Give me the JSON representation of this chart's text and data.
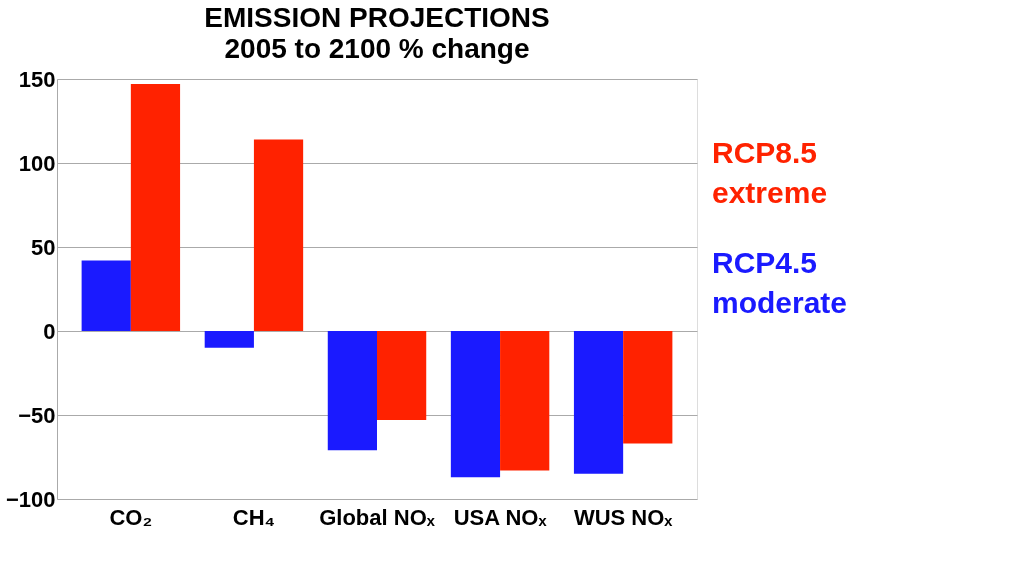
{
  "chart_data": {
    "type": "bar",
    "title": "EMISSION PROJECTIONS",
    "subtitle": "2005 to 2100 % change",
    "categories": [
      "CO₂",
      "CH₄",
      "Global NOₓ",
      "USA NOₓ",
      "WUS NOₓ"
    ],
    "series": [
      {
        "name": "RCP4.5 moderate",
        "color": "#1a1aff",
        "values": [
          42,
          -10,
          -71,
          -87,
          -85
        ]
      },
      {
        "name": "RCP8.5 extreme",
        "color": "#ff2200",
        "values": [
          147,
          114,
          -53,
          -83,
          -67
        ]
      }
    ],
    "ylim": [
      -100,
      150
    ],
    "yticks": [
      -100,
      -50,
      0,
      50,
      100,
      150
    ],
    "grid": "y",
    "legend": "right"
  }
}
